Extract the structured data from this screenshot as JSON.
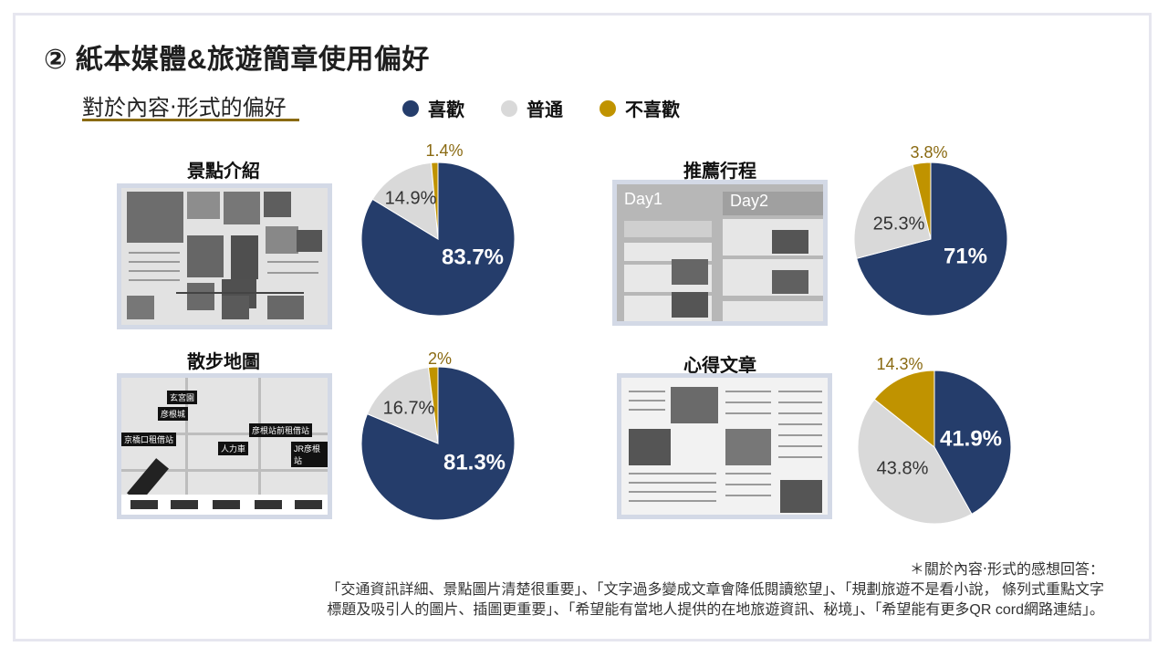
{
  "title": "② 紙本媒體&旅遊簡章使用偏好",
  "subtitle": "對於內容‧形式的偏好",
  "legend": [
    {
      "label": "喜歡",
      "color": "#253d6b"
    },
    {
      "label": "普通",
      "color": "#d9d9d9"
    },
    {
      "label": "不喜歡",
      "color": "#c09300"
    }
  ],
  "panels": {
    "p1": {
      "label": "景點介紹"
    },
    "p2": {
      "label": "推薦行程",
      "day1": "Day1",
      "day2": "Day2"
    },
    "p3": {
      "label": "散步地圖",
      "map_labels": [
        "玄宮園",
        "彦根城",
        "彦根站前租借站",
        "京橋口租借站",
        "人力車",
        "JR彦根站"
      ]
    },
    "p4": {
      "label": "心得文章"
    }
  },
  "chart_data": [
    {
      "type": "pie",
      "title": "景點介紹",
      "categories": [
        "喜歡",
        "普通",
        "不喜歡"
      ],
      "values": [
        83.7,
        14.9,
        1.4
      ],
      "labels": [
        "83.7%",
        "14.9%",
        "1.4%"
      ]
    },
    {
      "type": "pie",
      "title": "推薦行程",
      "categories": [
        "喜歡",
        "普通",
        "不喜歡"
      ],
      "values": [
        71,
        25.3,
        3.8
      ],
      "labels": [
        "71%",
        "25.3%",
        "3.8%"
      ]
    },
    {
      "type": "pie",
      "title": "散步地圖",
      "categories": [
        "喜歡",
        "普通",
        "不喜歡"
      ],
      "values": [
        81.3,
        16.7,
        2
      ],
      "labels": [
        "81.3%",
        "16.7%",
        "2%"
      ]
    },
    {
      "type": "pie",
      "title": "心得文章",
      "categories": [
        "喜歡",
        "普通",
        "不喜歡"
      ],
      "values": [
        41.9,
        43.8,
        14.3
      ],
      "labels": [
        "41.9%",
        "43.8%",
        "14.3%"
      ]
    }
  ],
  "note": {
    "heading": "＊關於內容‧形式的感想回答：",
    "line1": "「交通資訊詳細、景點圖片清楚很重要」、「文字過多變成文章會降低閱讀慾望」、「規劃旅遊不是看小說， 條列式重點文字",
    "line2": "標題及吸引人的圖片、插圖更重要」、「希望能有當地人提供的在地旅遊資訊、秘境」、「希望能有更多QR cord網路連結」。"
  }
}
